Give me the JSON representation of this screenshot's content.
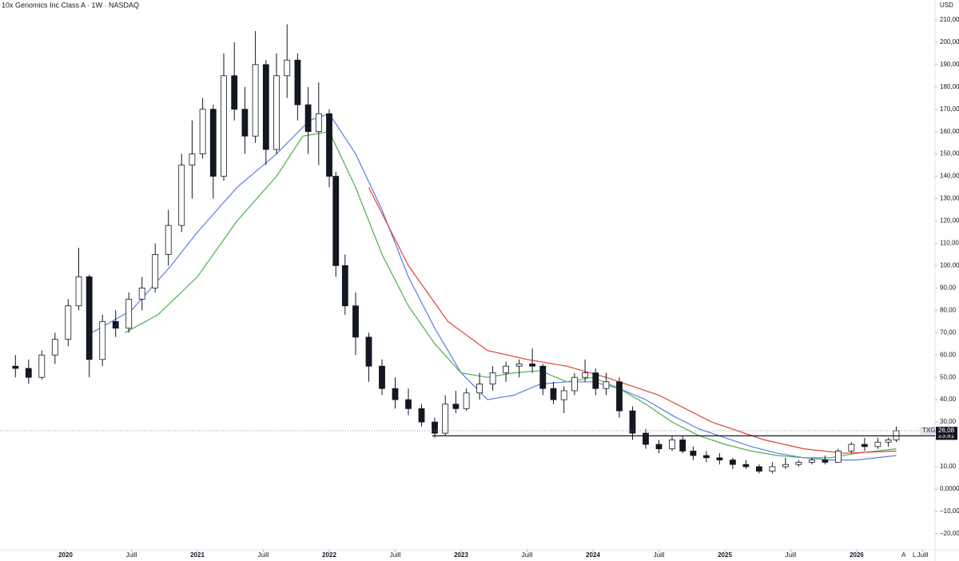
{
  "chart_data": {
    "type": "candlestick",
    "title": "10x Genomics Inc Class A · 1W · NASDAQ",
    "currency": "USD",
    "up_color": "#ffffff",
    "down_color": "#131722",
    "x": [
      2019.62,
      2019.72,
      2019.82,
      2019.92,
      2020.02,
      2020.1,
      2020.18,
      2020.28,
      2020.38,
      2020.48,
      2020.58,
      2020.68,
      2020.78,
      2020.88,
      2020.96,
      2021.04,
      2021.12,
      2021.2,
      2021.28,
      2021.36,
      2021.44,
      2021.52,
      2021.6,
      2021.68,
      2021.76,
      2021.84,
      2021.92,
      2022.0,
      2022.05,
      2022.12,
      2022.2,
      2022.3,
      2022.4,
      2022.5,
      2022.6,
      2022.7,
      2022.8,
      2022.88,
      2022.96,
      2023.04,
      2023.14,
      2023.24,
      2023.34,
      2023.44,
      2023.54,
      2023.62,
      2023.7,
      2023.78,
      2023.86,
      2023.94,
      2024.02,
      2024.1,
      2024.2,
      2024.3,
      2024.4,
      2024.5,
      2024.6,
      2024.68,
      2024.76,
      2024.86,
      2024.96,
      2025.06,
      2025.16,
      2025.26,
      2025.36,
      2025.46,
      2025.56,
      2025.66,
      2025.76,
      2025.86,
      2025.96,
      2026.06,
      2026.16,
      2026.24,
      2026.3
    ],
    "open": [
      55,
      54,
      50,
      60,
      67,
      82,
      95,
      58,
      75,
      72,
      85,
      90,
      105,
      118,
      145,
      150,
      170,
      140,
      185,
      170,
      158,
      190,
      152,
      185,
      192,
      172,
      160,
      168,
      140,
      100,
      82,
      68,
      55,
      45,
      40,
      36,
      30,
      25,
      38,
      36,
      43,
      47,
      52,
      55,
      56,
      55,
      45,
      40,
      44,
      50,
      52,
      45,
      48,
      35,
      25,
      20,
      18,
      22,
      17,
      15,
      14,
      13,
      11,
      10,
      8,
      10,
      11,
      12,
      13,
      12,
      17,
      20,
      19,
      21,
      22
    ],
    "high": [
      60,
      58,
      62,
      70,
      85,
      108,
      96,
      78,
      80,
      88,
      95,
      110,
      125,
      150,
      165,
      175,
      172,
      195,
      200,
      180,
      205,
      192,
      195,
      208,
      195,
      180,
      182,
      170,
      142,
      105,
      88,
      70,
      58,
      50,
      45,
      38,
      32,
      42,
      44,
      45,
      52,
      55,
      57,
      58,
      63,
      56,
      48,
      46,
      52,
      58,
      54,
      52,
      50,
      37,
      27,
      22,
      24,
      24,
      19,
      17,
      16,
      14,
      13,
      11,
      12,
      14,
      13,
      14,
      15,
      18,
      21,
      23,
      23,
      23,
      28
    ],
    "low": [
      50,
      47,
      49,
      56,
      64,
      80,
      50,
      55,
      68,
      70,
      80,
      88,
      100,
      115,
      130,
      148,
      130,
      138,
      165,
      150,
      155,
      145,
      150,
      175,
      165,
      150,
      145,
      135,
      95,
      78,
      60,
      48,
      42,
      36,
      33,
      28,
      23,
      24,
      34,
      35,
      40,
      44,
      48,
      50,
      52,
      42,
      38,
      34,
      42,
      48,
      42,
      42,
      32,
      22,
      18,
      16,
      17,
      16,
      13,
      12,
      11,
      9,
      9,
      7,
      7,
      9,
      10,
      11,
      11,
      12,
      16,
      17,
      18,
      19,
      21
    ],
    "close": [
      54,
      50,
      60,
      67,
      82,
      95,
      58,
      75,
      72,
      85,
      90,
      105,
      118,
      145,
      150,
      170,
      140,
      185,
      170,
      158,
      190,
      152,
      185,
      192,
      172,
      160,
      168,
      140,
      100,
      82,
      68,
      55,
      45,
      40,
      36,
      30,
      25,
      38,
      36,
      43,
      47,
      52,
      55,
      56,
      55,
      45,
      40,
      44,
      50,
      52,
      45,
      48,
      35,
      25,
      20,
      18,
      22,
      17,
      15,
      14,
      13,
      11,
      10,
      8,
      10,
      11,
      12,
      13,
      12,
      17,
      20,
      19,
      21,
      22,
      26.08
    ],
    "lines": [
      {
        "color": "#5b7ee5",
        "x": [
          2020.2,
          2020.5,
          2020.8,
          2021.0,
          2021.3,
          2021.6,
          2021.85,
          2022.0,
          2022.2,
          2022.4,
          2022.6,
          2022.8,
          2023.0,
          2023.2,
          2023.4,
          2023.6,
          2023.8,
          2024.0,
          2024.2,
          2024.4,
          2024.6,
          2024.8,
          2025.0,
          2025.2,
          2025.4,
          2025.6,
          2025.8,
          2026.0,
          2026.3
        ],
        "values": [
          70,
          80,
          100,
          115,
          135,
          150,
          165,
          168,
          150,
          125,
          95,
          72,
          52,
          40,
          42,
          47,
          48,
          48,
          45,
          40,
          33,
          27,
          23,
          19,
          16,
          14,
          13,
          13,
          15
        ]
      },
      {
        "color": "#4caf50",
        "x": [
          2020.45,
          2020.7,
          2021.0,
          2021.3,
          2021.6,
          2021.8,
          2022.0,
          2022.2,
          2022.4,
          2022.6,
          2022.8,
          2023.0,
          2023.2,
          2023.4,
          2023.6,
          2023.8,
          2024.0,
          2024.2,
          2024.4,
          2024.6,
          2024.8,
          2025.0,
          2025.2,
          2025.4,
          2025.6,
          2025.8,
          2026.0,
          2026.3
        ],
        "values": [
          70,
          78,
          95,
          120,
          140,
          158,
          160,
          135,
          105,
          82,
          65,
          52,
          50,
          52,
          53,
          48,
          50,
          45,
          38,
          30,
          24,
          20,
          17,
          15,
          14,
          14,
          16,
          18
        ]
      },
      {
        "color": "#e0413a",
        "x": [
          2022.3,
          2022.6,
          2022.9,
          2023.2,
          2023.5,
          2023.8,
          2024.1,
          2024.5,
          2024.9,
          2025.3,
          2025.6,
          2025.9,
          2026.3
        ],
        "values": [
          135,
          100,
          75,
          62,
          58,
          55,
          50,
          42,
          30,
          22,
          18,
          16,
          17
        ]
      }
    ],
    "xlim": [
      2019.503,
      2026.594
    ],
    "xticks": [
      {
        "value": 2020,
        "label": "2020"
      },
      {
        "value": 2020.5,
        "label": "Juill"
      },
      {
        "value": 2021,
        "label": "2021"
      },
      {
        "value": 2021.5,
        "label": "Juill"
      },
      {
        "value": 2022,
        "label": "2022"
      },
      {
        "value": 2022.5,
        "label": "Juill"
      },
      {
        "value": 2023,
        "label": "2023"
      },
      {
        "value": 2023.5,
        "label": "Juill"
      },
      {
        "value": 2024,
        "label": "2024"
      },
      {
        "value": 2024.5,
        "label": "Juill"
      },
      {
        "value": 2025,
        "label": "2025"
      },
      {
        "value": 2025.5,
        "label": "Juill"
      },
      {
        "value": 2026,
        "label": "2026"
      },
      {
        "value": 2026.5,
        "label": "Juill"
      }
    ],
    "ylim": [
      -27.2,
      218.9
    ],
    "yticks": [
      {
        "value": 210,
        "label": "210,00"
      },
      {
        "value": 200,
        "label": "200,00"
      },
      {
        "value": 190,
        "label": "190,00"
      },
      {
        "value": 180,
        "label": "180,00"
      },
      {
        "value": 170,
        "label": "170,00"
      },
      {
        "value": 160,
        "label": "160,00"
      },
      {
        "value": 150,
        "label": "150,00"
      },
      {
        "value": 140,
        "label": "140,00"
      },
      {
        "value": 130,
        "label": "130,00"
      },
      {
        "value": 120,
        "label": "120,00"
      },
      {
        "value": 110,
        "label": "110,00"
      },
      {
        "value": 100,
        "label": "100,00"
      },
      {
        "value": 90,
        "label": "90,00"
      },
      {
        "value": 80,
        "label": "80,00"
      },
      {
        "value": 70,
        "label": "70,00"
      },
      {
        "value": 60,
        "label": "60,00"
      },
      {
        "value": 50,
        "label": "50,00"
      },
      {
        "value": 40,
        "label": "40,00"
      },
      {
        "value": 30,
        "label": "30,00"
      },
      {
        "value": 10,
        "label": "10,00"
      },
      {
        "value": 0,
        "label": "0,0000"
      },
      {
        "value": -10,
        "label": "−10,00"
      },
      {
        "value": -20,
        "label": "−20,00"
      }
    ],
    "last_price": {
      "symbol": "TXG",
      "value": 26.08,
      "label": "26,08"
    },
    "support": {
      "value": 23.81,
      "label": "23,81",
      "x_start": 2022.78
    },
    "scale_buttons": [
      "A",
      "L"
    ]
  }
}
